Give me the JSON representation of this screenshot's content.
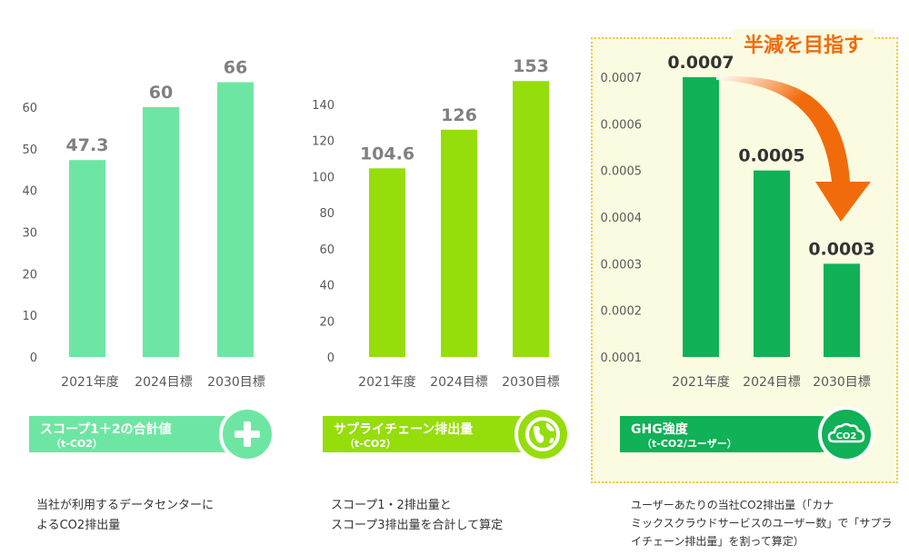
{
  "colors": {
    "scope12": "#6ee6a3",
    "supply": "#96dd0c",
    "ghg": "#10b157",
    "arrow": "#f26b0a",
    "highlight_bg": "#fbfbe1",
    "highlight_border": "#f5c542"
  },
  "annotation": {
    "text": "半減を目指す"
  },
  "chart_data": [
    {
      "type": "bar",
      "categories": [
        "2021年度",
        "2024目標",
        "2030目標"
      ],
      "values": [
        47.3,
        60,
        66
      ],
      "data_labels": [
        "47.3",
        "60",
        "66"
      ],
      "ylim": [
        0,
        60
      ],
      "yticks": [
        0,
        10,
        20,
        30,
        40,
        50,
        60
      ],
      "grid": false,
      "title": "スコープ1＋2の合計値",
      "unit": "（t-CO2）"
    },
    {
      "type": "bar",
      "categories": [
        "2021年度",
        "2024目標",
        "2030目標"
      ],
      "values": [
        104.6,
        126,
        153
      ],
      "data_labels": [
        "104.6",
        "126",
        "153"
      ],
      "ylim": [
        0,
        140
      ],
      "yticks": [
        0,
        20,
        40,
        60,
        80,
        100,
        120,
        140
      ],
      "grid": false,
      "title": "サプライチェーン排出量",
      "unit": "（t-CO2）"
    },
    {
      "type": "bar",
      "categories": [
        "2021年度",
        "2024目標",
        "2030目標"
      ],
      "values": [
        0.0007,
        0.0005,
        0.0003
      ],
      "data_labels": [
        "0.0007",
        "0.0005",
        "0.0003"
      ],
      "ylim": [
        0.0001,
        0.0007
      ],
      "yticks": [
        "0.0001",
        "0.0002",
        "0.0003",
        "0.0004",
        "0.0005",
        "0.0006",
        "0.0007"
      ],
      "grid": false,
      "title": "GHG強度",
      "unit": "（t-CO2/ユーザー）"
    }
  ],
  "banners": [
    {
      "title": "スコープ1＋2の合計値",
      "unit": "（t-CO2）",
      "icon": "plus-icon"
    },
    {
      "title": "サプライチェーン排出量",
      "unit": "（t-CO2）",
      "icon": "globe-icon"
    },
    {
      "title": "GHG強度",
      "unit": "（t-CO2/ユーザー）",
      "icon": "co2-cloud-icon",
      "icon_text": "CO2"
    }
  ],
  "descriptions": [
    {
      "lines": [
        "当社が利用するデータセンターに",
        "よるCO2排出量"
      ]
    },
    {
      "lines": [
        "スコープ1・2排出量と",
        "スコープ3排出量を合計して算定"
      ]
    },
    {
      "lines": [
        "ユーザーあたりの当社CO2排出量（「カナ",
        "ミックスクラウドサービスのユーザー数」で「サプラ",
        "イチェーン排出量」を割って算定）"
      ]
    }
  ]
}
